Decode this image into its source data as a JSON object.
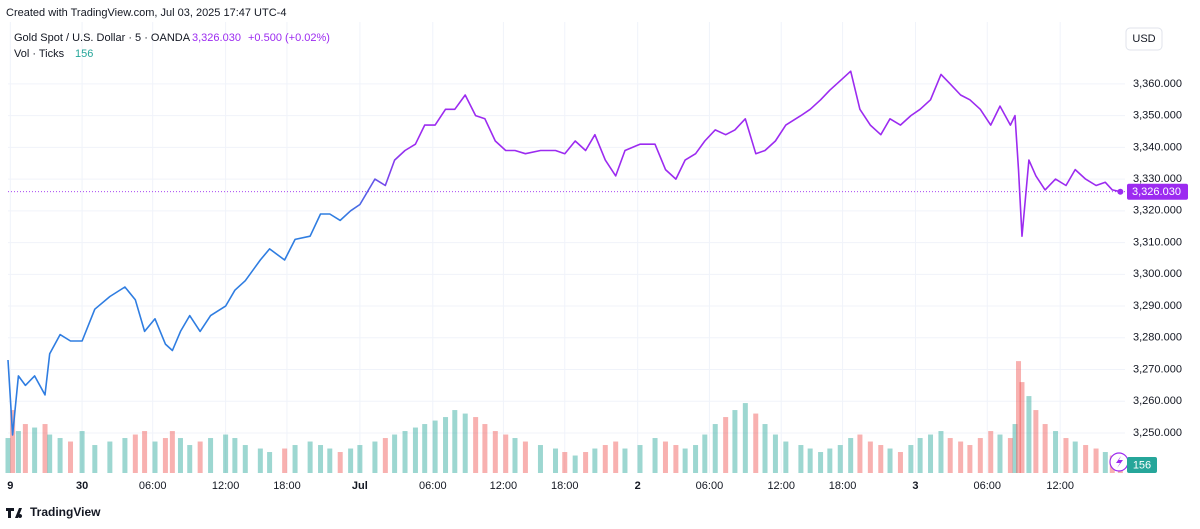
{
  "chart_data": {
    "type": "line",
    "header": "Created with TradingView.com, Jul 03, 2025 17:47 UTC-4",
    "currency": "USD",
    "brand": "TradingView",
    "change": "+0.500 (+0.02%)",
    "grid": true,
    "series": [
      {
        "name": "Gold Spot / U.S. Dollar · 5 · OANDA",
        "colors": [
          "#2f7de1",
          "#9c2bf0"
        ],
        "x": [
          -6.4,
          -6.0,
          -5.5,
          -4.9,
          -4.1,
          -3.2,
          -2.8,
          -1.9,
          -1.0,
          0,
          1.1,
          2.4,
          3.7,
          4.6,
          5.4,
          6.3,
          7.2,
          7.8,
          8.5,
          9.3,
          10.2,
          11.1,
          12.4,
          13.2,
          14.1,
          15.4,
          16.2,
          17.5,
          18.4,
          19.7,
          20.6,
          21.4,
          22.3,
          23.2,
          24.0,
          25.3,
          26.2,
          27.0,
          27.9,
          28.8,
          29.6,
          30.5,
          31.4,
          32.2,
          33.1,
          34.0,
          34.8,
          35.7,
          36.6,
          37.4,
          38.3,
          39.6,
          40.9,
          41.7,
          42.6,
          43.5,
          44.3,
          45.2,
          46.1,
          46.9,
          48.2,
          49.5,
          50.4,
          51.3,
          52.1,
          53.0,
          53.8,
          54.7,
          55.6,
          56.4,
          57.3,
          58.2,
          59.0,
          59.9,
          60.8,
          62.1,
          62.9,
          63.8,
          64.6,
          65.5,
          66.4,
          67.2,
          68.1,
          69.0,
          69.8,
          70.7,
          71.6,
          72.4,
          73.3,
          74.2,
          75.0,
          75.9,
          76.7,
          77.6,
          78.5,
          79.3,
          80.2,
          80.6,
          80.9,
          81.2,
          81.8,
          82.4,
          83.2,
          84.1,
          85.0,
          85.8,
          86.7,
          87.6,
          88.4,
          89.0,
          89.7
        ],
        "values": [
          3273,
          3249.4,
          3268,
          3265,
          3268,
          3262,
          3275,
          3281,
          3279,
          3279,
          3289,
          3293,
          3296,
          3292,
          3282,
          3286,
          3278,
          3276,
          3282,
          3287,
          3282,
          3287,
          3290,
          3295,
          3298,
          3304.5,
          3308,
          3304.5,
          3311,
          3312,
          3319,
          3319,
          3317,
          3320,
          3322,
          3330,
          3328,
          3336,
          3339,
          3341,
          3347,
          3347,
          3352,
          3352,
          3356.5,
          3350,
          3349,
          3342,
          3339,
          3339,
          3338,
          3339,
          3339,
          3338,
          3342,
          3339,
          3344,
          3336,
          3331,
          3339,
          3341,
          3341,
          3333,
          3330,
          3336,
          3338,
          3342,
          3345.5,
          3344,
          3345.5,
          3349,
          3338,
          3339,
          3342,
          3347,
          3350,
          3352,
          3355,
          3358,
          3361,
          3364,
          3352,
          3347,
          3344,
          3349,
          3347,
          3350,
          3352,
          3355,
          3363,
          3360,
          3356.5,
          3355,
          3352,
          3347,
          3353,
          3347,
          3350,
          3333,
          3312,
          3336,
          3331,
          3326.6,
          3330,
          3328,
          3333,
          3330,
          3328,
          3329,
          3326.6,
          3326.03
        ]
      }
    ],
    "last_price": {
      "value": 3326.03,
      "label": "3,326.030"
    },
    "volume": {
      "name": "Vol · Ticks",
      "up_color": "#26a69a",
      "down_color": "#ef5350",
      "values": [
        500,
        900,
        600,
        700,
        650,
        700,
        550,
        500,
        450,
        600,
        400,
        450,
        500,
        550,
        600,
        450,
        500,
        600,
        500,
        400,
        450,
        500,
        550,
        500,
        400,
        350,
        300,
        350,
        400,
        450,
        400,
        350,
        300,
        350,
        400,
        450,
        500,
        550,
        600,
        650,
        700,
        750,
        800,
        900,
        850,
        800,
        700,
        600,
        550,
        500,
        450,
        400,
        350,
        300,
        250,
        300,
        350,
        400,
        450,
        350,
        400,
        500,
        450,
        400,
        350,
        400,
        550,
        700,
        800,
        900,
        1000,
        850,
        700,
        550,
        450,
        400,
        350,
        300,
        350,
        400,
        500,
        550,
        450,
        400,
        350,
        300,
        400,
        500,
        550,
        600,
        500,
        450,
        400,
        500,
        600,
        550,
        500,
        700,
        1600,
        1300,
        1100,
        900,
        700,
        600,
        500,
        450,
        400,
        350,
        300,
        250,
        156
      ]
    },
    "xlim": [
      -6.4,
      90.1
    ],
    "ylim": [
      3237.4,
      3379.5
    ],
    "yticks": [
      {
        "value": 3250,
        "label": "3,250.000"
      },
      {
        "value": 3260,
        "label": "3,260.000"
      },
      {
        "value": 3270,
        "label": "3,270.000"
      },
      {
        "value": 3280,
        "label": "3,280.000"
      },
      {
        "value": 3290,
        "label": "3,290.000"
      },
      {
        "value": 3300,
        "label": "3,300.000"
      },
      {
        "value": 3310,
        "label": "3,310.000"
      },
      {
        "value": 3320,
        "label": "3,320.000"
      },
      {
        "value": 3330,
        "label": "3,330.000"
      },
      {
        "value": 3340,
        "label": "3,340.000"
      },
      {
        "value": 3350,
        "label": "3,350.000"
      },
      {
        "value": 3360,
        "label": "3,360.000"
      }
    ],
    "xticks": [
      {
        "value": -6.2,
        "label": "9"
      },
      {
        "value": 0,
        "label": "30"
      },
      {
        "value": 6.1,
        "label": "06:00"
      },
      {
        "value": 12.4,
        "label": "12:00"
      },
      {
        "value": 17.7,
        "label": "18:00"
      },
      {
        "value": 24.0,
        "label": "Jul"
      },
      {
        "value": 30.3,
        "label": "06:00"
      },
      {
        "value": 36.4,
        "label": "12:00"
      },
      {
        "value": 41.7,
        "label": "18:00"
      },
      {
        "value": 48.0,
        "label": "2"
      },
      {
        "value": 54.2,
        "label": "06:00"
      },
      {
        "value": 60.4,
        "label": "12:00"
      },
      {
        "value": 65.7,
        "label": "18:00"
      },
      {
        "value": 72.0,
        "label": "3"
      },
      {
        "value": 78.2,
        "label": "06:00"
      },
      {
        "value": 84.5,
        "label": "12:00"
      }
    ]
  }
}
